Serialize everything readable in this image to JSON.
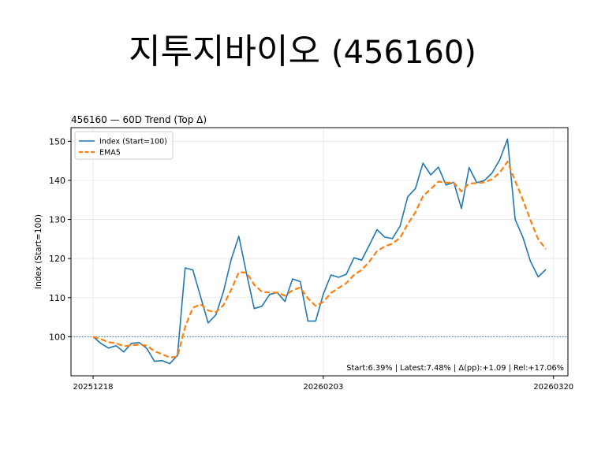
{
  "page": {
    "title_name": "지투지바이오",
    "title_code": "(456160)"
  },
  "chart_data": {
    "type": "line",
    "title": "456160 — 60D Trend (Top Δ)",
    "xlabel": "",
    "ylabel": "Index (Start=100)",
    "ylim": [
      90,
      153.5
    ],
    "yticks": [
      100,
      110,
      120,
      130,
      140,
      150
    ],
    "x_tick_labels": [
      "20251218",
      "20260203",
      "20260320"
    ],
    "x_tick_index": [
      0,
      30,
      60
    ],
    "grid": true,
    "legend": "top-left",
    "reference_line": {
      "y": 100,
      "style": "dotted",
      "color": "#1f77b4"
    },
    "annotation": "Start:6.39% | Latest:7.48% | Δ(pp):+1.09 | Rel:+17.06%",
    "series": [
      {
        "name": "Index (Start=100)",
        "color": "#1f77b4",
        "style": "solid",
        "values": [
          100,
          98.3,
          97.1,
          97.7,
          96.1,
          98.3,
          98.5,
          97.0,
          93.7,
          93.9,
          93.1,
          95.2,
          117.6,
          117.1,
          110.3,
          103.5,
          105.6,
          111.6,
          119.8,
          125.7,
          116.1,
          107.2,
          107.8,
          110.8,
          111.3,
          109.0,
          114.8,
          114.1,
          104.0,
          104.0,
          110.9,
          115.8,
          115.2,
          116.0,
          120.2,
          119.6,
          123.4,
          127.4,
          125.5,
          125.1,
          128.3,
          135.8,
          137.9,
          144.4,
          141.4,
          143.4,
          138.8,
          139.5,
          132.8,
          143.3,
          139.4,
          140.0,
          141.9,
          145.3,
          150.6,
          130.0,
          125.5,
          119.3,
          115.3,
          117.2
        ]
      },
      {
        "name": "EMA5",
        "color": "#ff7f0e",
        "style": "dashed",
        "values": [
          100,
          99.4,
          98.6,
          98.3,
          97.6,
          97.8,
          98.0,
          97.7,
          96.3,
          95.5,
          94.7,
          94.9,
          102.5,
          107.4,
          108.3,
          106.7,
          106.3,
          108.1,
          112.0,
          116.5,
          116.4,
          113.3,
          111.5,
          111.3,
          111.3,
          110.5,
          111.9,
          112.6,
          109.8,
          107.9,
          108.9,
          111.2,
          112.5,
          113.7,
          115.8,
          117.1,
          119.2,
          121.9,
          123.1,
          123.8,
          125.3,
          128.8,
          131.8,
          136.0,
          137.8,
          139.7,
          139.4,
          139.4,
          137.2,
          139.2,
          139.3,
          139.5,
          140.3,
          142.0,
          144.8,
          139.9,
          135.1,
          129.8,
          125.0,
          122.4
        ]
      }
    ]
  }
}
